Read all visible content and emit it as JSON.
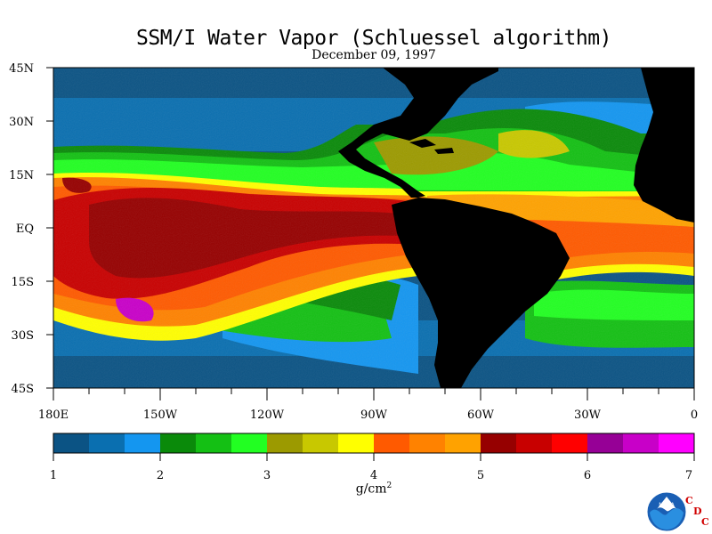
{
  "title": "SSM/I Water Vapor (Schluessel algorithm)",
  "date": "December 09, 1997",
  "lat_labels": [
    "45N",
    "30N",
    "15N",
    "EQ",
    "15S",
    "30S",
    "45S"
  ],
  "lon_labels": [
    "180E",
    "150W",
    "120W",
    "90W",
    "60W",
    "30W",
    "0"
  ],
  "colorbar": {
    "tick_labels": [
      "1",
      "2",
      "3",
      "4",
      "5",
      "6",
      "7"
    ],
    "colors": [
      "#0b5384",
      "#0a6fb0",
      "#1496f0",
      "#0a8a0a",
      "#14c014",
      "#22ff22",
      "#9c9a00",
      "#c8c800",
      "#ffff00",
      "#ff5a00",
      "#ff8200",
      "#ffa200",
      "#960000",
      "#c80000",
      "#ff0000",
      "#960096",
      "#c800c8",
      "#ff00ff"
    ],
    "unit": "g/cm",
    "unit_exp": "2"
  },
  "logo_text": "NOAA",
  "org_letters": [
    "C",
    "D",
    "C"
  ]
}
